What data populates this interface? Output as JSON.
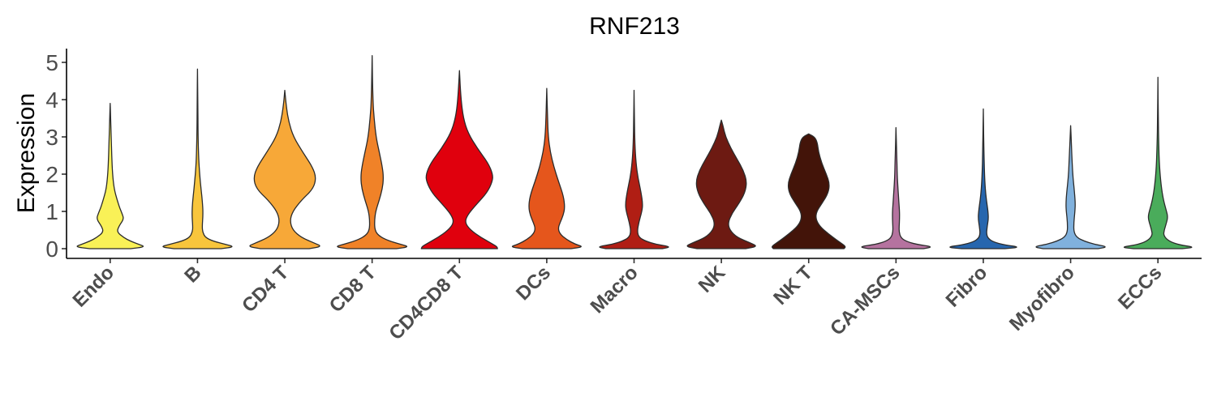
{
  "chart_data": {
    "type": "violin",
    "title": "RNF213",
    "xlabel": "",
    "ylabel": "Expression",
    "ylim": [
      -0.2,
      5.4
    ],
    "yticks": [
      0,
      1,
      2,
      3,
      4,
      5
    ],
    "grid": false,
    "legend": "none",
    "categories": [
      "Endo",
      "B",
      "CD4 T",
      "CD8 T",
      "CD4CD8 T",
      "DCs",
      "Macro",
      "NK",
      "NK T",
      "CA-MSCs",
      "Fibro",
      "Myofibro",
      "ECCs"
    ],
    "series": [
      {
        "category": "Endo",
        "color": "#f9f157",
        "max": 3.9,
        "profile": [
          [
            0.0,
            0.52
          ],
          [
            0.05,
            0.9
          ],
          [
            0.12,
            0.72
          ],
          [
            0.2,
            0.52
          ],
          [
            0.3,
            0.34
          ],
          [
            0.45,
            0.17
          ],
          [
            0.6,
            0.22
          ],
          [
            0.8,
            0.35
          ],
          [
            0.95,
            0.3
          ],
          [
            1.1,
            0.24
          ],
          [
            1.3,
            0.18
          ],
          [
            1.6,
            0.1
          ],
          [
            2.0,
            0.06
          ],
          [
            2.5,
            0.04
          ],
          [
            3.0,
            0.025
          ],
          [
            3.5,
            0.012
          ],
          [
            3.9,
            0.0
          ]
        ]
      },
      {
        "category": "B",
        "color": "#f8c53c",
        "max": 4.82,
        "profile": [
          [
            0.0,
            0.6
          ],
          [
            0.05,
            0.95
          ],
          [
            0.12,
            0.7
          ],
          [
            0.2,
            0.4
          ],
          [
            0.3,
            0.2
          ],
          [
            0.45,
            0.13
          ],
          [
            0.6,
            0.12
          ],
          [
            0.9,
            0.14
          ],
          [
            1.2,
            0.13
          ],
          [
            1.6,
            0.09
          ],
          [
            2.0,
            0.055
          ],
          [
            2.4,
            0.03
          ],
          [
            3.0,
            0.015
          ],
          [
            4.0,
            0.008
          ],
          [
            4.82,
            0.0
          ]
        ]
      },
      {
        "category": "CD4 T",
        "color": "#f7a838",
        "max": 4.25,
        "profile": [
          [
            0.0,
            0.62
          ],
          [
            0.06,
            0.95
          ],
          [
            0.15,
            0.75
          ],
          [
            0.3,
            0.42
          ],
          [
            0.5,
            0.2
          ],
          [
            0.75,
            0.13
          ],
          [
            1.0,
            0.2
          ],
          [
            1.3,
            0.42
          ],
          [
            1.6,
            0.72
          ],
          [
            1.9,
            0.8
          ],
          [
            2.2,
            0.7
          ],
          [
            2.6,
            0.45
          ],
          [
            3.0,
            0.22
          ],
          [
            3.4,
            0.1
          ],
          [
            3.8,
            0.04
          ],
          [
            4.25,
            0.0
          ]
        ]
      },
      {
        "category": "CD8 T",
        "color": "#f08228",
        "max": 5.18,
        "profile": [
          [
            0.0,
            0.62
          ],
          [
            0.05,
            0.95
          ],
          [
            0.12,
            0.72
          ],
          [
            0.22,
            0.4
          ],
          [
            0.35,
            0.16
          ],
          [
            0.5,
            0.07
          ],
          [
            0.75,
            0.06
          ],
          [
            1.0,
            0.09
          ],
          [
            1.3,
            0.18
          ],
          [
            1.6,
            0.26
          ],
          [
            1.9,
            0.29
          ],
          [
            2.2,
            0.26
          ],
          [
            2.6,
            0.18
          ],
          [
            3.0,
            0.1
          ],
          [
            3.5,
            0.05
          ],
          [
            4.0,
            0.02
          ],
          [
            5.18,
            0.0
          ]
        ]
      },
      {
        "category": "CD4CD8 T",
        "color": "#e0000d",
        "max": 4.78,
        "profile": [
          [
            0.0,
            0.97
          ],
          [
            0.06,
            0.95
          ],
          [
            0.15,
            0.8
          ],
          [
            0.3,
            0.55
          ],
          [
            0.5,
            0.28
          ],
          [
            0.7,
            0.14
          ],
          [
            0.9,
            0.2
          ],
          [
            1.2,
            0.44
          ],
          [
            1.5,
            0.7
          ],
          [
            1.8,
            0.84
          ],
          [
            2.0,
            0.85
          ],
          [
            2.3,
            0.73
          ],
          [
            2.7,
            0.45
          ],
          [
            3.1,
            0.22
          ],
          [
            3.5,
            0.1
          ],
          [
            4.0,
            0.04
          ],
          [
            4.78,
            0.0
          ]
        ]
      },
      {
        "category": "DCs",
        "color": "#e5561c",
        "max": 4.3,
        "profile": [
          [
            0.0,
            0.62
          ],
          [
            0.05,
            0.94
          ],
          [
            0.12,
            0.72
          ],
          [
            0.25,
            0.5
          ],
          [
            0.4,
            0.33
          ],
          [
            0.55,
            0.29
          ],
          [
            0.7,
            0.34
          ],
          [
            0.9,
            0.42
          ],
          [
            1.1,
            0.46
          ],
          [
            1.4,
            0.43
          ],
          [
            1.8,
            0.3
          ],
          [
            2.2,
            0.18
          ],
          [
            2.6,
            0.09
          ],
          [
            3.0,
            0.04
          ],
          [
            3.5,
            0.02
          ],
          [
            4.3,
            0.0
          ]
        ]
      },
      {
        "category": "Macro",
        "color": "#b01e14",
        "max": 4.25,
        "profile": [
          [
            0.0,
            0.72
          ],
          [
            0.05,
            0.95
          ],
          [
            0.12,
            0.55
          ],
          [
            0.2,
            0.3
          ],
          [
            0.3,
            0.13
          ],
          [
            0.45,
            0.08
          ],
          [
            0.7,
            0.12
          ],
          [
            1.0,
            0.2
          ],
          [
            1.2,
            0.22
          ],
          [
            1.5,
            0.18
          ],
          [
            1.9,
            0.1
          ],
          [
            2.3,
            0.05
          ],
          [
            2.8,
            0.02
          ],
          [
            3.5,
            0.01
          ],
          [
            4.25,
            0.0
          ]
        ]
      },
      {
        "category": "NK",
        "color": "#6d1a12",
        "max": 3.45,
        "profile": [
          [
            0.0,
            0.62
          ],
          [
            0.06,
            0.92
          ],
          [
            0.15,
            0.75
          ],
          [
            0.3,
            0.4
          ],
          [
            0.5,
            0.21
          ],
          [
            0.7,
            0.17
          ],
          [
            0.95,
            0.27
          ],
          [
            1.2,
            0.44
          ],
          [
            1.5,
            0.6
          ],
          [
            1.8,
            0.65
          ],
          [
            2.1,
            0.56
          ],
          [
            2.4,
            0.4
          ],
          [
            2.7,
            0.24
          ],
          [
            3.0,
            0.11
          ],
          [
            3.3,
            0.04
          ],
          [
            3.45,
            0.0
          ]
        ]
      },
      {
        "category": "NK T",
        "color": "#431409",
        "max": 3.08,
        "profile": [
          [
            0.0,
            0.9
          ],
          [
            0.06,
            0.95
          ],
          [
            0.2,
            0.75
          ],
          [
            0.4,
            0.5
          ],
          [
            0.6,
            0.28
          ],
          [
            0.8,
            0.18
          ],
          [
            1.0,
            0.2
          ],
          [
            1.25,
            0.36
          ],
          [
            1.5,
            0.5
          ],
          [
            1.75,
            0.53
          ],
          [
            2.0,
            0.45
          ],
          [
            2.3,
            0.33
          ],
          [
            2.6,
            0.25
          ],
          [
            2.85,
            0.22
          ],
          [
            3.0,
            0.15
          ],
          [
            3.08,
            0.0
          ]
        ]
      },
      {
        "category": "CA-MSCs",
        "color": "#b5739f",
        "max": 3.25,
        "profile": [
          [
            0.0,
            0.7
          ],
          [
            0.05,
            0.95
          ],
          [
            0.12,
            0.5
          ],
          [
            0.2,
            0.25
          ],
          [
            0.3,
            0.12
          ],
          [
            0.45,
            0.08
          ],
          [
            0.6,
            0.08
          ],
          [
            0.8,
            0.09
          ],
          [
            1.0,
            0.09
          ],
          [
            1.3,
            0.07
          ],
          [
            1.6,
            0.05
          ],
          [
            2.0,
            0.03
          ],
          [
            2.5,
            0.02
          ],
          [
            3.25,
            0.0
          ]
        ]
      },
      {
        "category": "Fibro",
        "color": "#2766ae",
        "max": 3.75,
        "profile": [
          [
            0.0,
            0.55
          ],
          [
            0.04,
            0.95
          ],
          [
            0.1,
            0.55
          ],
          [
            0.18,
            0.25
          ],
          [
            0.28,
            0.12
          ],
          [
            0.4,
            0.08
          ],
          [
            0.6,
            0.1
          ],
          [
            0.8,
            0.13
          ],
          [
            1.0,
            0.12
          ],
          [
            1.3,
            0.08
          ],
          [
            1.6,
            0.05
          ],
          [
            2.0,
            0.03
          ],
          [
            2.6,
            0.015
          ],
          [
            3.75,
            0.0
          ]
        ]
      },
      {
        "category": "Myofibro",
        "color": "#80b1dd",
        "max": 3.3,
        "profile": [
          [
            0.0,
            0.7
          ],
          [
            0.05,
            0.95
          ],
          [
            0.12,
            0.6
          ],
          [
            0.2,
            0.35
          ],
          [
            0.3,
            0.16
          ],
          [
            0.45,
            0.08
          ],
          [
            0.7,
            0.08
          ],
          [
            1.0,
            0.11
          ],
          [
            1.2,
            0.12
          ],
          [
            1.5,
            0.1
          ],
          [
            1.9,
            0.06
          ],
          [
            2.3,
            0.04
          ],
          [
            2.8,
            0.02
          ],
          [
            3.3,
            0.0
          ]
        ]
      },
      {
        "category": "ECCs",
        "color": "#4aac5b",
        "max": 4.6,
        "profile": [
          [
            0.0,
            0.62
          ],
          [
            0.04,
            0.95
          ],
          [
            0.1,
            0.55
          ],
          [
            0.2,
            0.28
          ],
          [
            0.35,
            0.14
          ],
          [
            0.5,
            0.16
          ],
          [
            0.7,
            0.22
          ],
          [
            0.85,
            0.25
          ],
          [
            1.0,
            0.22
          ],
          [
            1.3,
            0.14
          ],
          [
            1.7,
            0.08
          ],
          [
            2.2,
            0.04
          ],
          [
            2.8,
            0.02
          ],
          [
            3.5,
            0.01
          ],
          [
            4.6,
            0.0
          ]
        ]
      }
    ]
  }
}
